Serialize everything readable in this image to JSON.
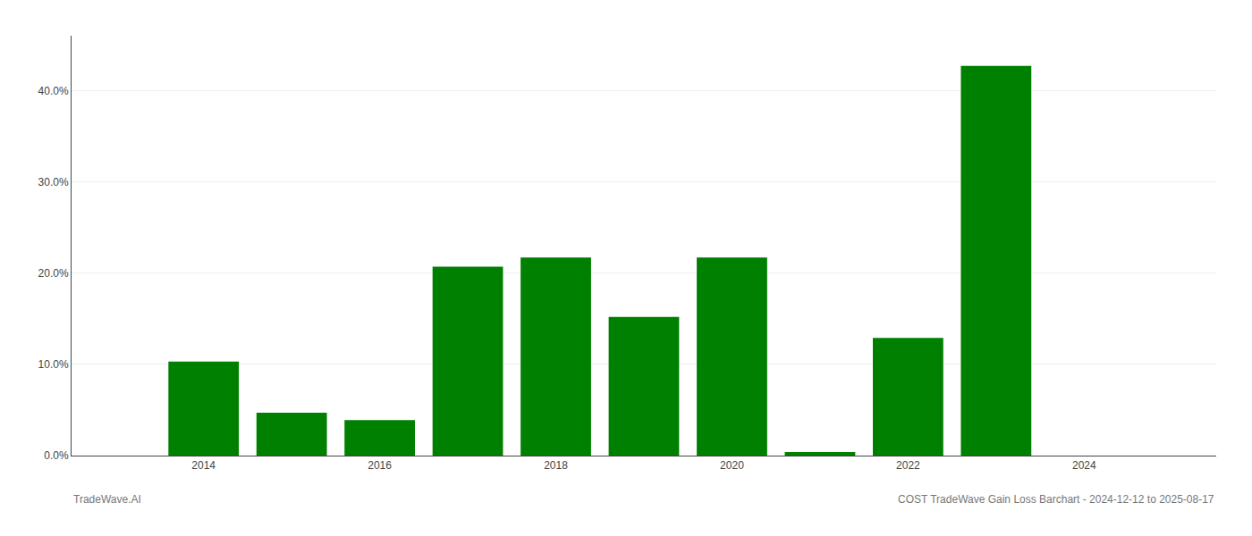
{
  "chart_data": {
    "type": "bar",
    "x": [
      2014,
      2015,
      2016,
      2017,
      2018,
      2019,
      2020,
      2021,
      2022,
      2023,
      2024
    ],
    "values": [
      0.103,
      0.047,
      0.039,
      0.207,
      0.217,
      0.152,
      0.217,
      0.004,
      0.129,
      0.427,
      0.0
    ],
    "color": "#008000",
    "xlim": [
      2012.5,
      2025.5
    ],
    "xticks": [
      2014,
      2016,
      2018,
      2020,
      2022,
      2024
    ],
    "ylim": [
      0,
      0.46
    ],
    "yticks": [
      {
        "value": 0.0,
        "label": "0.0%"
      },
      {
        "value": 0.1,
        "label": "10.0%"
      },
      {
        "value": 0.2,
        "label": "20.0%"
      },
      {
        "value": 0.3,
        "label": "30.0%"
      },
      {
        "value": 0.4,
        "label": "40.0%"
      }
    ],
    "grid": "y",
    "annotations": [
      "TradeWave.AI",
      "COST TradeWave Gain Loss Barchart - 2024-12-12 to 2025-08-17"
    ]
  }
}
